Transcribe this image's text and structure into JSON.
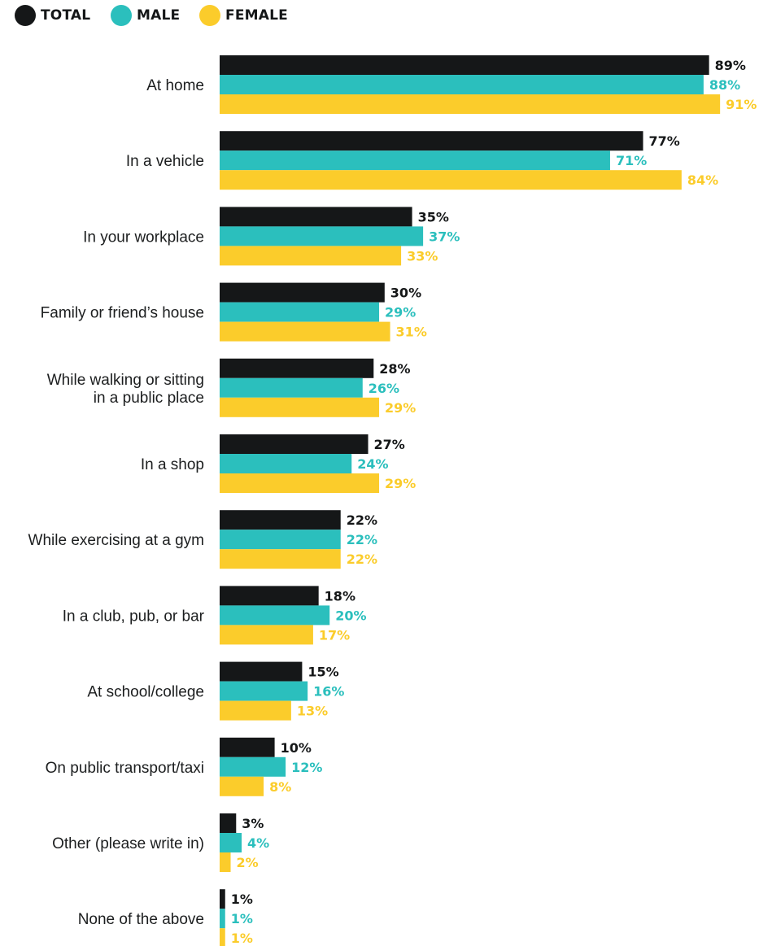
{
  "legend": [
    {
      "label": "TOTAL",
      "color": "#151718"
    },
    {
      "label": "MALE",
      "color": "#2bbfbd"
    },
    {
      "label": "FEMALE",
      "color": "#fbcc2b"
    }
  ],
  "chart_data": {
    "type": "bar",
    "orientation": "horizontal",
    "title": "",
    "xlabel": "",
    "ylabel": "",
    "xlim": [
      0,
      100
    ],
    "grid": false,
    "legend_position": "top-left",
    "value_format": "percent",
    "categories": [
      [
        "At home"
      ],
      [
        "In a vehicle"
      ],
      [
        "In your workplace"
      ],
      [
        "Family or friend’s house"
      ],
      [
        "While walking or sitting",
        "in a public place"
      ],
      [
        "In a shop"
      ],
      [
        "While exercising at a gym"
      ],
      [
        "In a club, pub, or bar"
      ],
      [
        "At school/college"
      ],
      [
        "On public transport/taxi"
      ],
      [
        "Other (please write in)"
      ],
      [
        "None of the above"
      ]
    ],
    "series": [
      {
        "name": "TOTAL",
        "color": "#151718",
        "label_color": "#151718",
        "values": [
          89,
          77,
          35,
          30,
          28,
          27,
          22,
          18,
          15,
          10,
          3,
          1
        ]
      },
      {
        "name": "MALE",
        "color": "#2bbfbd",
        "label_color": "#2bbfbd",
        "values": [
          88,
          71,
          37,
          29,
          26,
          24,
          22,
          20,
          16,
          12,
          4,
          1
        ]
      },
      {
        "name": "FEMALE",
        "color": "#fbcc2b",
        "label_color": "#fbcc2b",
        "values": [
          91,
          84,
          33,
          31,
          29,
          29,
          22,
          17,
          13,
          8,
          2,
          1
        ]
      }
    ]
  }
}
